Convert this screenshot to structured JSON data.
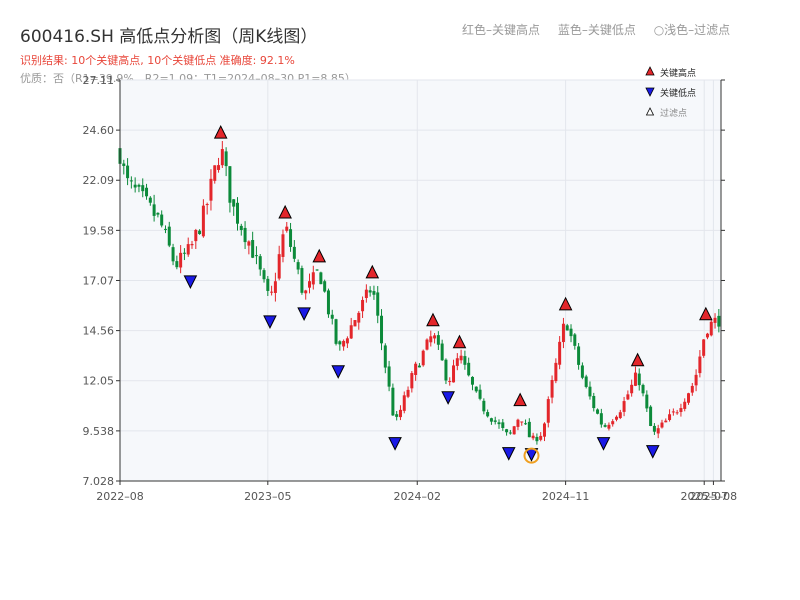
{
  "header": {
    "title": "600416.SH 高低点分析图（周K线图）",
    "color_legend": [
      "红色–关键高点",
      "蓝色–关键低点",
      "○浅色–过滤点"
    ],
    "result_text": "识别结果: 10个关键高点, 10个关键低点   准确度: 92.1%",
    "quality_text": "优质：否（R1=39.9%，R2=1.09；T1=2024–08–30 P1=8.85）"
  },
  "colors": {
    "up": "#e3262b",
    "down": "#0c8a3a",
    "high_marker": "#e3262b",
    "low_marker": "#1a1ae6",
    "filtered_ring": "#f0a020",
    "plot_bg": "#f6f8fb",
    "grid": "#e3e6ec",
    "axis": "#333333"
  },
  "legend": [
    {
      "label": "关键高点",
      "icon": "triangle-up-red"
    },
    {
      "label": "关键低点",
      "icon": "triangle-down-blue"
    },
    {
      "label": "过滤点",
      "icon": "triangle-up-outline"
    }
  ],
  "chart_data": {
    "type": "candlestick",
    "xlabel": "",
    "ylabel": "",
    "ylim": [
      7.028,
      27.11
    ],
    "y_ticks": [
      7.028,
      9.538,
      12.05,
      14.56,
      17.07,
      19.58,
      22.09,
      24.6,
      27.11
    ],
    "y_tick_labels": [
      "7.028",
      "9.538",
      "12.05",
      "14.56",
      "17.07",
      "19.58",
      "22.09",
      "24.60",
      "27.11"
    ],
    "x_ticks": [
      {
        "date": "2022-08-01",
        "label": "2022–08"
      },
      {
        "date": "2023-05-01",
        "label": "2023–05"
      },
      {
        "date": "2024-02-01",
        "label": "2024–02"
      },
      {
        "date": "2024-11-01",
        "label": "2024–11"
      },
      {
        "date": "2025-07-15",
        "label": "2025–07"
      },
      {
        "date": "2025-08-01",
        "label": "2025–08"
      }
    ],
    "x_range": [
      "2022-08-01",
      "2025-08-15"
    ],
    "price_path": [
      {
        "date": "2022-08-01",
        "close": 23.5
      },
      {
        "date": "2022-08-12",
        "close": 22.0
      },
      {
        "date": "2022-09-09",
        "close": 21.2
      },
      {
        "date": "2022-10-14",
        "close": 20.0
      },
      {
        "date": "2022-11-11",
        "close": 17.8
      },
      {
        "date": "2022-12-09",
        "close": 18.6
      },
      {
        "date": "2023-01-06",
        "close": 20.6
      },
      {
        "date": "2023-02-03",
        "close": 23.8
      },
      {
        "date": "2023-02-24",
        "close": 20.8
      },
      {
        "date": "2023-03-31",
        "close": 18.8
      },
      {
        "date": "2023-05-05",
        "close": 15.9
      },
      {
        "date": "2023-06-02",
        "close": 19.8
      },
      {
        "date": "2023-07-07",
        "close": 16.3
      },
      {
        "date": "2023-08-04",
        "close": 17.6
      },
      {
        "date": "2023-09-08",
        "close": 13.5
      },
      {
        "date": "2023-10-06",
        "close": 15.0
      },
      {
        "date": "2023-11-10",
        "close": 16.8
      },
      {
        "date": "2023-12-22",
        "close": 9.8
      },
      {
        "date": "2024-01-26",
        "close": 12.5
      },
      {
        "date": "2024-03-01",
        "close": 14.4
      },
      {
        "date": "2024-03-29",
        "close": 12.0
      },
      {
        "date": "2024-04-19",
        "close": 13.3
      },
      {
        "date": "2024-05-24",
        "close": 11.0
      },
      {
        "date": "2024-07-19",
        "close": 9.2
      },
      {
        "date": "2024-08-09",
        "close": 10.4
      },
      {
        "date": "2024-08-30",
        "close": 9.0
      },
      {
        "date": "2024-09-20",
        "close": 9.5
      },
      {
        "date": "2024-10-04",
        "close": 11.5
      },
      {
        "date": "2024-11-01",
        "close": 15.2
      },
      {
        "date": "2024-12-06",
        "close": 11.8
      },
      {
        "date": "2025-01-10",
        "close": 9.7
      },
      {
        "date": "2025-02-14",
        "close": 10.8
      },
      {
        "date": "2025-03-14",
        "close": 12.4
      },
      {
        "date": "2025-04-11",
        "close": 9.3
      },
      {
        "date": "2025-05-23",
        "close": 10.5
      },
      {
        "date": "2025-06-27",
        "close": 12.0
      },
      {
        "date": "2025-07-18",
        "close": 14.7
      },
      {
        "date": "2025-08-15",
        "close": 15.2
      }
    ],
    "key_highs": [
      {
        "date": "2023-02-03",
        "price": 23.9
      },
      {
        "date": "2023-06-02",
        "price": 19.9
      },
      {
        "date": "2023-08-04",
        "price": 17.7
      },
      {
        "date": "2023-11-10",
        "price": 16.9
      },
      {
        "date": "2024-03-01",
        "price": 14.5
      },
      {
        "date": "2024-04-19",
        "price": 13.4
      },
      {
        "date": "2024-08-09",
        "price": 10.5
      },
      {
        "date": "2024-11-01",
        "price": 15.3
      },
      {
        "date": "2025-03-14",
        "price": 12.5
      },
      {
        "date": "2025-07-18",
        "price": 14.8
      }
    ],
    "key_lows": [
      {
        "date": "2022-12-09",
        "price": 17.5
      },
      {
        "date": "2023-05-05",
        "price": 15.5
      },
      {
        "date": "2023-07-07",
        "price": 15.9
      },
      {
        "date": "2023-09-08",
        "price": 13.0
      },
      {
        "date": "2023-12-22",
        "price": 9.4
      },
      {
        "date": "2024-03-29",
        "price": 11.7
      },
      {
        "date": "2024-07-19",
        "price": 8.9
      },
      {
        "date": "2024-08-30",
        "price": 8.85
      },
      {
        "date": "2025-01-10",
        "price": 9.4
      },
      {
        "date": "2025-04-11",
        "price": 9.0
      }
    ],
    "filtered_points": [
      {
        "date": "2024-08-30",
        "price": 8.85
      }
    ]
  }
}
